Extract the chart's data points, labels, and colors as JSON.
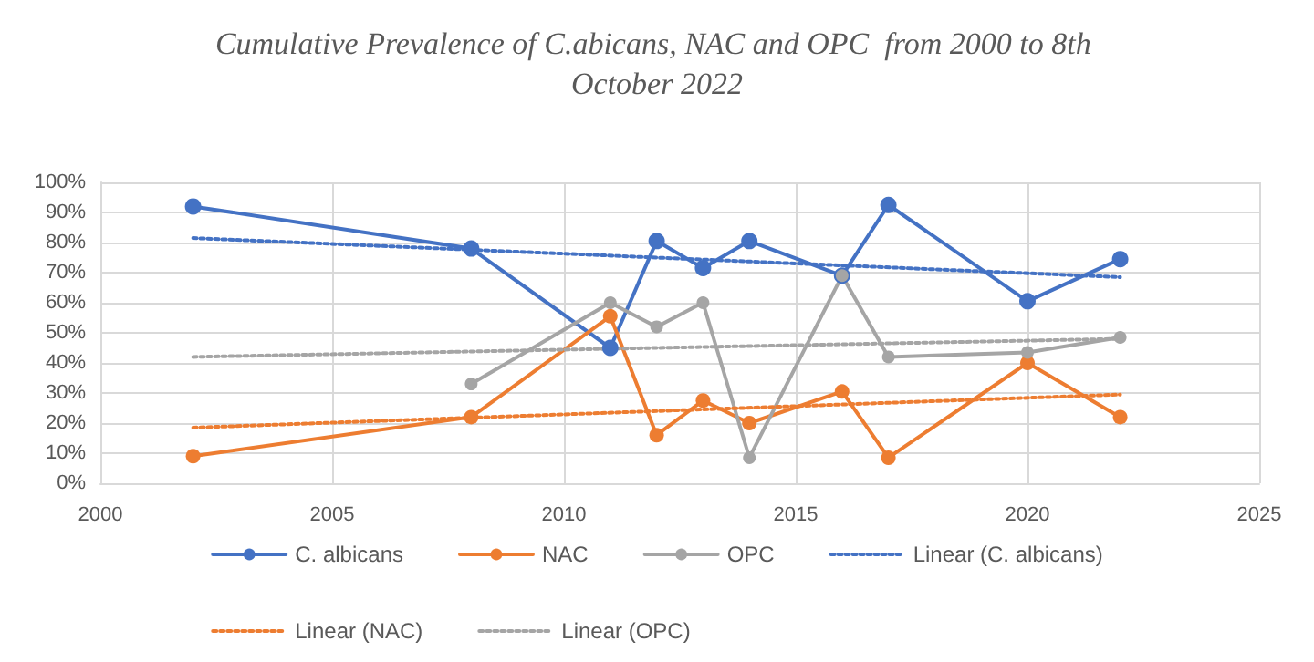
{
  "chart_data": {
    "type": "line",
    "title": "Cumulative Prevalence of C.abicans, NAC and OPC  from 2000 to 8th October 2022",
    "xlim": [
      2000,
      2025
    ],
    "xticks": [
      2000,
      2005,
      2010,
      2015,
      2020,
      2025
    ],
    "ylim": [
      0,
      100
    ],
    "yticks": [
      {
        "value": 0,
        "label": "0%"
      },
      {
        "value": 10,
        "label": "10%"
      },
      {
        "value": 20,
        "label": "20%"
      },
      {
        "value": 30,
        "label": "30%"
      },
      {
        "value": 40,
        "label": "40%"
      },
      {
        "value": 50,
        "label": "50%"
      },
      {
        "value": 60,
        "label": "60%"
      },
      {
        "value": 70,
        "label": "70%"
      },
      {
        "value": 80,
        "label": "80%"
      },
      {
        "value": 90,
        "label": "90%"
      },
      {
        "value": 100,
        "label": "100%"
      }
    ],
    "grid": true,
    "legend": "bottom",
    "marker": "circle",
    "line_style": "solid",
    "series": [
      {
        "name": "C. albicans",
        "color": "#4472c4",
        "x": [
          2002,
          2008,
          2011,
          2012,
          2013,
          2014,
          2016,
          2017,
          2020,
          2022
        ],
        "values": [
          92,
          78,
          45,
          80.5,
          71.5,
          80.5,
          69,
          92.5,
          60.5,
          74.5
        ]
      },
      {
        "name": "NAC",
        "color": "#ed7d31",
        "x": [
          2002,
          2008,
          2011,
          2012,
          2013,
          2014,
          2016,
          2017,
          2020,
          2022
        ],
        "values": [
          9,
          22,
          55.5,
          16,
          27.5,
          20,
          30.5,
          8.5,
          40,
          22
        ]
      },
      {
        "name": "OPC",
        "color": "#a5a5a5",
        "x": [
          2008,
          2011,
          2012,
          2013,
          2014,
          2016,
          2017,
          2020,
          2022
        ],
        "values": [
          33,
          60,
          52,
          60,
          8.5,
          69,
          42,
          43.5,
          48.5
        ]
      },
      {
        "name": "Linear (C. albicans)",
        "color": "#4472c4",
        "x": [
          2002,
          2022
        ],
        "values": [
          81.5,
          68.5
        ],
        "marker": "none",
        "line_style": "dotted"
      },
      {
        "name": "Linear (NAC)",
        "color": "#ed7d31",
        "x": [
          2002,
          2022
        ],
        "values": [
          18.5,
          29.5
        ],
        "marker": "none",
        "line_style": "dotted"
      },
      {
        "name": "Linear (OPC)",
        "color": "#a5a5a5",
        "x": [
          2002,
          2022
        ],
        "values": [
          42,
          48
        ],
        "marker": "none",
        "line_style": "dotted"
      }
    ]
  }
}
